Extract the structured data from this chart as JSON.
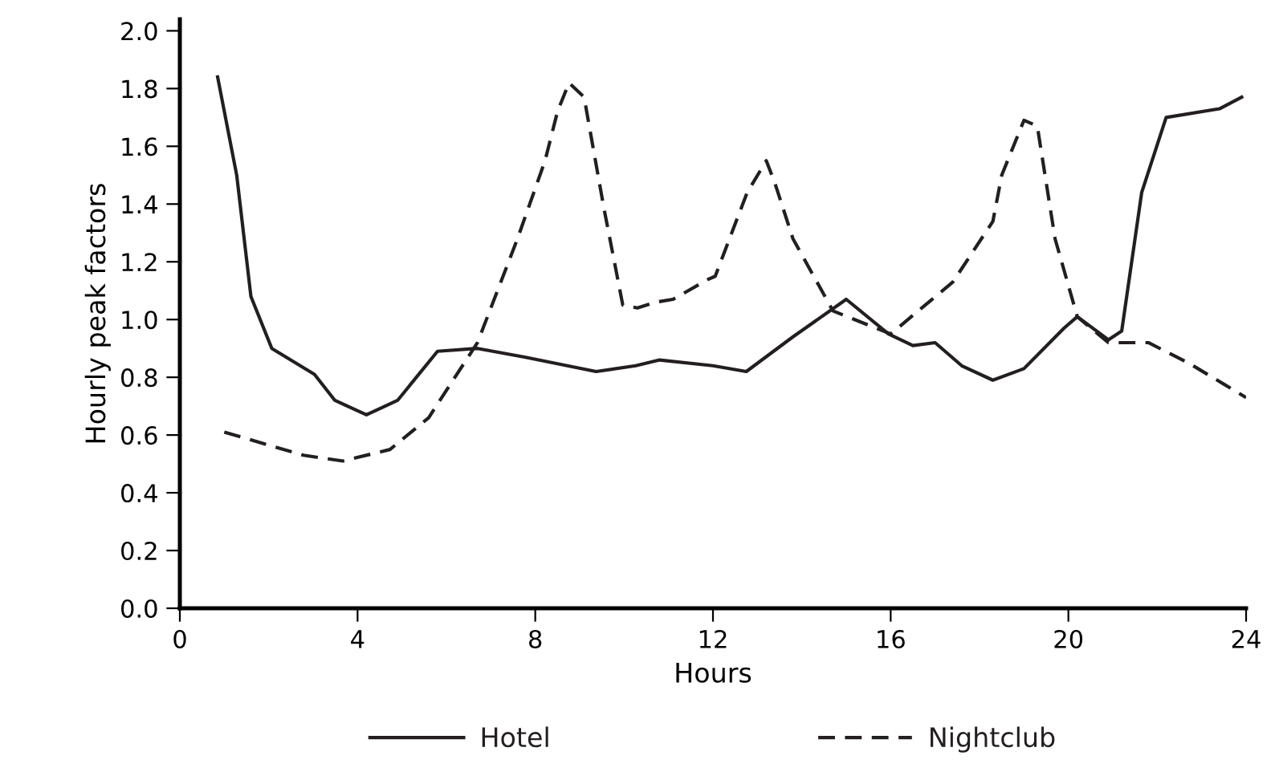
{
  "chart_data": {
    "type": "line",
    "xlabel": "Hours",
    "ylabel": "Hourly peak factors",
    "xlim": [
      0,
      24
    ],
    "ylim": [
      0,
      2.04
    ],
    "xticks": [
      0,
      4,
      8,
      12,
      16,
      20,
      24
    ],
    "yticks": [
      {
        "value": 0,
        "label": "0.0"
      },
      {
        "value": 0.2,
        "label": "0.2"
      },
      {
        "value": 0.4,
        "label": "0.4"
      },
      {
        "value": 0.6,
        "label": "0.6"
      },
      {
        "value": 0.8,
        "label": "0.8"
      },
      {
        "value": 1.0,
        "label": "1.0"
      },
      {
        "value": 1.2,
        "label": "1.2"
      },
      {
        "value": 1.4,
        "label": "1.4"
      },
      {
        "value": 1.6,
        "label": "1.6"
      },
      {
        "value": 1.8,
        "label": "1.8"
      },
      {
        "value": 2.0,
        "label": "2.0"
      }
    ],
    "grid": false,
    "legend": "bottom",
    "marker": "none",
    "series": [
      {
        "name": "Hotel",
        "color": "#231f20",
        "line_style": "solid",
        "x": [
          0.85,
          1.28,
          1.6,
          2.07,
          3.03,
          3.49,
          4.2,
          4.9,
          5.8,
          6.7,
          7.76,
          9.37,
          10.26,
          10.8,
          12.0,
          12.75,
          13.8,
          15.0,
          15.95,
          16.5,
          17.0,
          17.6,
          18.3,
          19.0,
          19.9,
          20.2,
          20.9,
          21.2,
          21.65,
          22.2,
          23.4,
          23.9
        ],
        "values": [
          1.84,
          1.5,
          1.08,
          0.9,
          0.81,
          0.72,
          0.67,
          0.72,
          0.89,
          0.9,
          0.87,
          0.82,
          0.84,
          0.86,
          0.84,
          0.82,
          0.94,
          1.07,
          0.95,
          0.91,
          0.92,
          0.84,
          0.79,
          0.83,
          0.97,
          1.01,
          0.93,
          0.96,
          1.44,
          1.7,
          1.73,
          1.77
        ]
      },
      {
        "name": "Nightclub",
        "color": "#231f20",
        "line_style": "dashed",
        "x": [
          1.0,
          2.78,
          3.67,
          4.73,
          5.6,
          6.7,
          7.6,
          8.22,
          8.5,
          8.76,
          9.1,
          9.54,
          9.97,
          10.3,
          10.7,
          11.1,
          11.9,
          12.05,
          12.77,
          13.2,
          13.4,
          13.8,
          14.7,
          16.0,
          17.4,
          18.3,
          18.5,
          19.0,
          19.3,
          19.7,
          20.2,
          20.9,
          21.8,
          22.7,
          24.0
        ],
        "values": [
          0.61,
          0.53,
          0.51,
          0.55,
          0.66,
          0.92,
          1.28,
          1.55,
          1.72,
          1.82,
          1.77,
          1.39,
          1.05,
          1.04,
          1.06,
          1.07,
          1.14,
          1.15,
          1.44,
          1.55,
          1.47,
          1.28,
          1.03,
          0.95,
          1.13,
          1.34,
          1.5,
          1.69,
          1.67,
          1.28,
          1.01,
          0.92,
          0.92,
          0.85,
          0.73
        ]
      }
    ]
  }
}
